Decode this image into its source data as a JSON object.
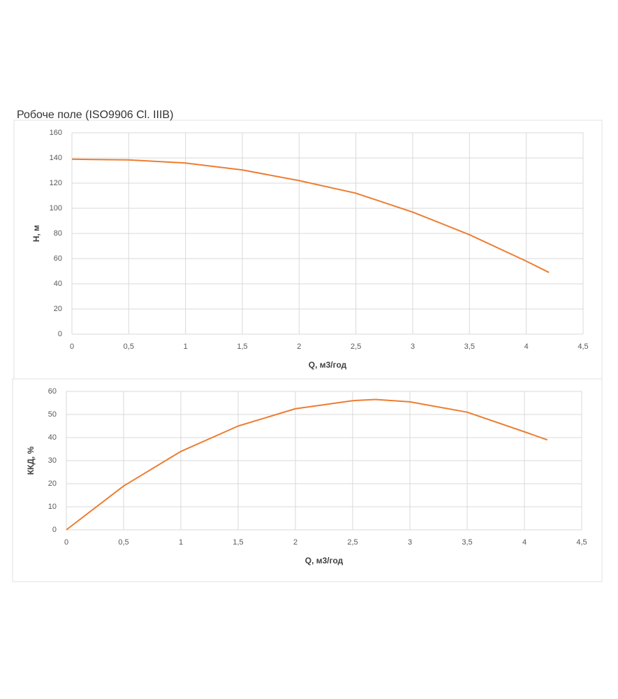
{
  "chart_data": [
    {
      "type": "line",
      "title": "Робоче поле (ISO9906 Cl. IIIB)",
      "x_label": "Q, м3/год",
      "y_label": "H, м",
      "x": [
        0,
        0.5,
        1,
        1.5,
        2,
        2.5,
        3,
        3.5,
        4,
        4.2
      ],
      "series": [
        {
          "name": "H",
          "color": "#ed7d31",
          "values": [
            139,
            138.5,
            136,
            130.5,
            122,
            112,
            97,
            79,
            58,
            49
          ]
        }
      ],
      "xlim": [
        0,
        4.5
      ],
      "xticks": [
        0,
        {
          "value": 0.5,
          "label": "0,5"
        },
        1,
        {
          "value": 1.5,
          "label": "1,5"
        },
        2,
        {
          "value": 2.5,
          "label": "2,5"
        },
        3,
        {
          "value": 3.5,
          "label": "3,5"
        },
        4,
        {
          "value": 4.5,
          "label": "4,5"
        }
      ],
      "ylim": [
        0,
        160
      ],
      "yticks": [
        0,
        20,
        40,
        60,
        80,
        100,
        120,
        140,
        160
      ],
      "grid": true
    },
    {
      "type": "line",
      "x_label": "Q, м3/год",
      "y_label": "ККД, %",
      "x": [
        0,
        0.5,
        1,
        1.5,
        2,
        2.5,
        2.7,
        3,
        3.5,
        4,
        4.2
      ],
      "series": [
        {
          "name": "ККД",
          "color": "#ed7d31",
          "values": [
            0,
            19,
            34,
            45,
            52.5,
            56,
            56.5,
            55.5,
            51,
            42.5,
            39
          ]
        }
      ],
      "xlim": [
        0,
        4.5
      ],
      "xticks": [
        0,
        {
          "value": 0.5,
          "label": "0,5"
        },
        1,
        {
          "value": 1.5,
          "label": "1,5"
        },
        2,
        {
          "value": 2.5,
          "label": "2,5"
        },
        3,
        {
          "value": 3.5,
          "label": "3,5"
        },
        4,
        {
          "value": 4.5,
          "label": "4,5"
        }
      ],
      "ylim": [
        0,
        60
      ],
      "yticks": [
        0,
        10,
        20,
        30,
        40,
        50,
        60
      ],
      "grid": true
    }
  ]
}
